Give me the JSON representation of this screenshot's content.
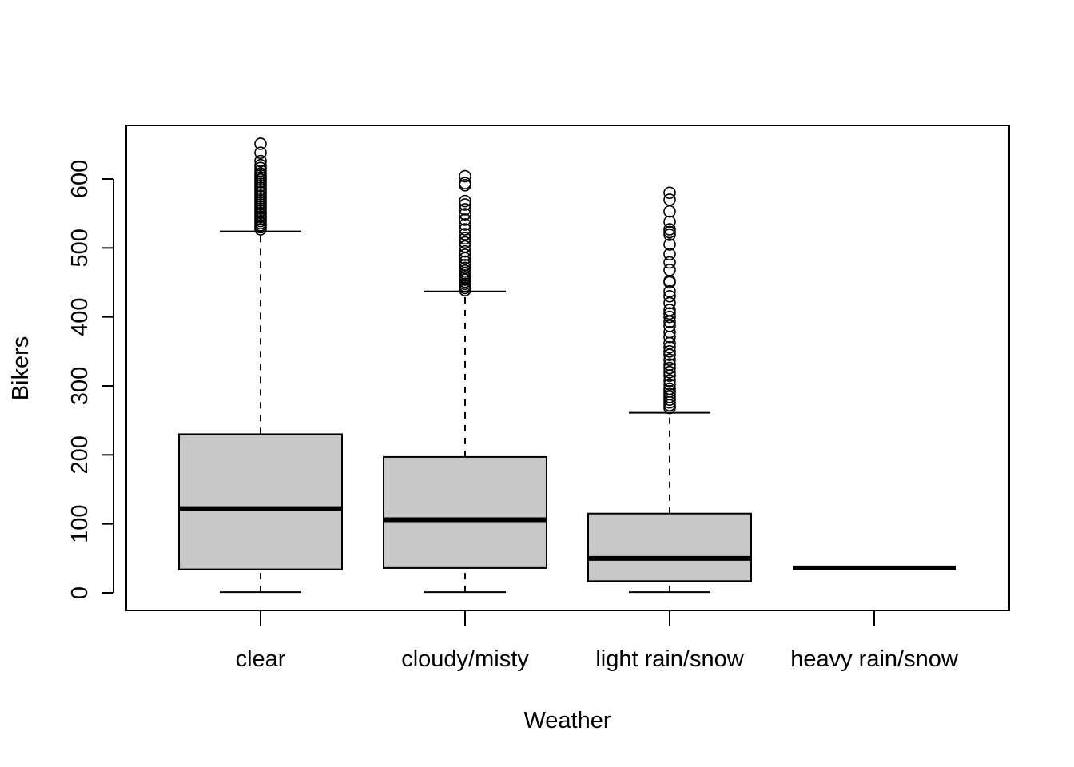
{
  "chart_data": {
    "type": "boxplot",
    "xlabel": "Weather",
    "ylabel": "Bikers",
    "ylim": [
      -25,
      680
    ],
    "y_ticks": [
      "0",
      "100",
      "200",
      "300",
      "400",
      "500",
      "600"
    ],
    "categories": [
      "clear",
      "cloudy/misty",
      "light rain/snow",
      "heavy rain/snow"
    ],
    "box_fill": "#c8c8c8",
    "boxes": [
      {
        "category": "clear",
        "whisker_low": 1,
        "q1": 34,
        "median": 122,
        "q3": 230,
        "whisker_high": 524,
        "outliers": [
          527,
          530,
          533,
          536,
          539,
          542,
          545,
          548,
          551,
          554,
          557,
          560,
          563,
          566,
          569,
          572,
          575,
          578,
          581,
          584,
          587,
          590,
          593,
          596,
          599,
          602,
          605,
          608,
          612,
          616,
          620,
          626,
          638,
          651
        ]
      },
      {
        "category": "cloudy/misty",
        "whisker_low": 1,
        "q1": 36,
        "median": 106,
        "q3": 197,
        "whisker_high": 437,
        "outliers": [
          439,
          442,
          445,
          448,
          451,
          454,
          457,
          460,
          463,
          467,
          471,
          475,
          480,
          485,
          490,
          495,
          502,
          508,
          514,
          520,
          527,
          534,
          541,
          549,
          556,
          563,
          568,
          591,
          594,
          604
        ]
      },
      {
        "category": "light rain/snow",
        "whisker_low": 1,
        "q1": 17,
        "median": 50,
        "q3": 115,
        "whisker_high": 261,
        "outliers": [
          268,
          272,
          276,
          280,
          284,
          288,
          292,
          296,
          302,
          308,
          315,
          320,
          326,
          331,
          338,
          345,
          350,
          356,
          362,
          371,
          378,
          387,
          393,
          400,
          405,
          410,
          420,
          430,
          437,
          450,
          452,
          468,
          479,
          491,
          505,
          519,
          523,
          527,
          538,
          553,
          570,
          580
        ]
      },
      {
        "category": "heavy rain/snow",
        "whisker_low": 36,
        "q1": 36,
        "median": 36,
        "q3": 36,
        "whisker_high": 36,
        "outliers": []
      }
    ]
  }
}
